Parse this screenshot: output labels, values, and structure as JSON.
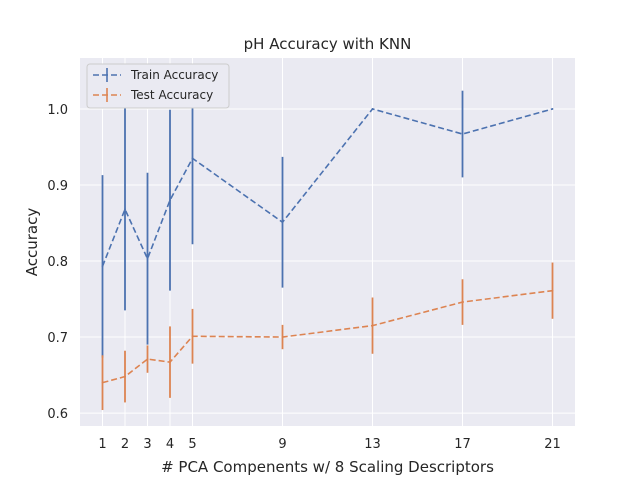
{
  "chart_data": {
    "type": "line",
    "title": "pH Accuracy with KNN",
    "xlabel": "# PCA Compenents w/ 8 Scaling Descriptors",
    "ylabel": "Accuracy",
    "x": [
      1,
      2,
      3,
      4,
      5,
      9,
      13,
      17,
      21
    ],
    "x_ticks": [
      "1",
      "2",
      "3",
      "4",
      "5",
      "9",
      "13",
      "17",
      "21"
    ],
    "y_ticks": [
      "0.6",
      "0.7",
      "0.8",
      "0.9",
      "1.0"
    ],
    "y_tick_values": [
      0.6,
      0.7,
      0.8,
      0.9,
      1.0
    ],
    "xlim": [
      0,
      22
    ],
    "ylim": [
      0.583,
      1.067
    ],
    "grid": true,
    "legend_position": "top-left",
    "series": [
      {
        "name": "Train Accuracy",
        "color": "#4c72b0",
        "values": [
          0.793,
          0.868,
          0.803,
          0.88,
          0.935,
          0.851,
          1.0,
          0.967,
          1.0
        ],
        "errors": [
          0.12,
          0.133,
          0.113,
          0.119,
          0.113,
          0.086,
          0.0,
          0.057,
          0.0
        ]
      },
      {
        "name": "Test Accuracy",
        "color": "#dd8452",
        "values": [
          0.64,
          0.648,
          0.671,
          0.667,
          0.701,
          0.7,
          0.715,
          0.746,
          0.761
        ],
        "errors": [
          0.036,
          0.034,
          0.018,
          0.047,
          0.036,
          0.016,
          0.037,
          0.03,
          0.037
        ]
      }
    ]
  }
}
